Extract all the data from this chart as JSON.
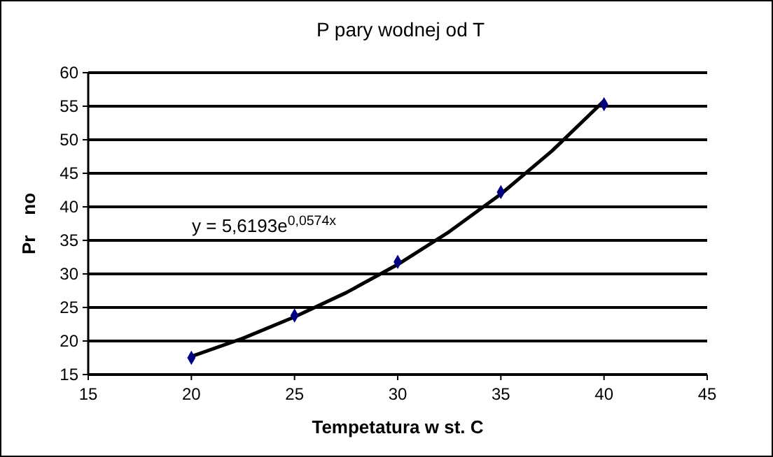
{
  "chart_data": {
    "type": "scatter",
    "title": "P pary wodnej od T",
    "xlabel": "Tempetatura w st. C",
    "ylabel": "Pr    no",
    "xlim": [
      15,
      45
    ],
    "xticks": [
      15,
      20,
      25,
      30,
      35,
      40,
      45
    ],
    "ylim": [
      15,
      60
    ],
    "yticks": [
      15,
      20,
      25,
      30,
      35,
      40,
      45,
      50,
      55,
      60
    ],
    "grid": "y",
    "series": [
      {
        "color": "#000080",
        "marker": "diamond",
        "x": [
          20,
          25,
          30,
          35,
          40
        ],
        "values": [
          17.5,
          23.8,
          31.8,
          42.2,
          55.3
        ]
      },
      {
        "type": "line",
        "color": "#000000",
        "marker": "none",
        "line_style": "solid",
        "x": [
          20,
          22.5,
          25,
          27.5,
          30,
          32.5,
          35,
          37.5,
          40
        ],
        "values": [
          17.7,
          20.4,
          23.6,
          27.2,
          31.4,
          36.3,
          41.9,
          48.4,
          55.8
        ]
      }
    ],
    "annotations": [
      "y = 5,6193e$^{0,0574x}$"
    ]
  }
}
